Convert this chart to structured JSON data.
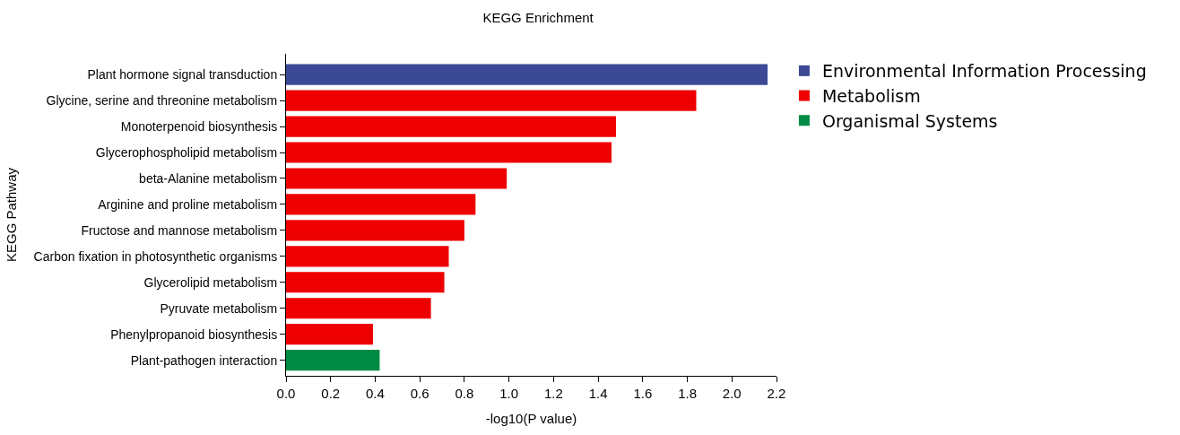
{
  "chart_data": {
    "type": "bar",
    "orientation": "horizontal",
    "title": "KEGG Enrichment",
    "xlabel": "-log10(P value)",
    "ylabel": "KEGG Pathway",
    "categories": [
      "Plant hormone signal transduction",
      "Glycine, serine and threonine metabolism",
      "Monoterpenoid biosynthesis",
      "Glycerophospholipid metabolism",
      "beta-Alanine metabolism",
      "Arginine and proline metabolism",
      "Fructose and mannose metabolism",
      "Carbon fixation in photosynthetic organisms",
      "Glycerolipid metabolism",
      "Pyruvate metabolism",
      "Phenylpropanoid biosynthesis",
      "Plant-pathogen interaction"
    ],
    "series": [
      {
        "name": "Environmental Information Processing",
        "color": "#3c4a96",
        "values": [
          2.16,
          null,
          null,
          null,
          null,
          null,
          null,
          null,
          null,
          null,
          null,
          null
        ]
      },
      {
        "name": "Metabolism",
        "color": "#ee0000",
        "values": [
          null,
          1.84,
          1.48,
          1.46,
          0.99,
          0.85,
          0.8,
          0.73,
          0.71,
          0.65,
          0.39,
          null
        ]
      },
      {
        "name": "Organismal Systems",
        "color": "#008b45",
        "values": [
          null,
          null,
          null,
          null,
          null,
          null,
          null,
          null,
          null,
          null,
          null,
          0.42
        ]
      }
    ],
    "xlim": [
      0,
      2.2
    ],
    "xticks": [
      {
        "value": 0,
        "label": "0.0"
      },
      0.2,
      0.4,
      0.6,
      0.8,
      {
        "value": 1,
        "label": "1.0"
      },
      1.2,
      1.4,
      1.6,
      1.8,
      {
        "value": 2,
        "label": "2.0"
      },
      2.2
    ],
    "legend": "top right"
  }
}
